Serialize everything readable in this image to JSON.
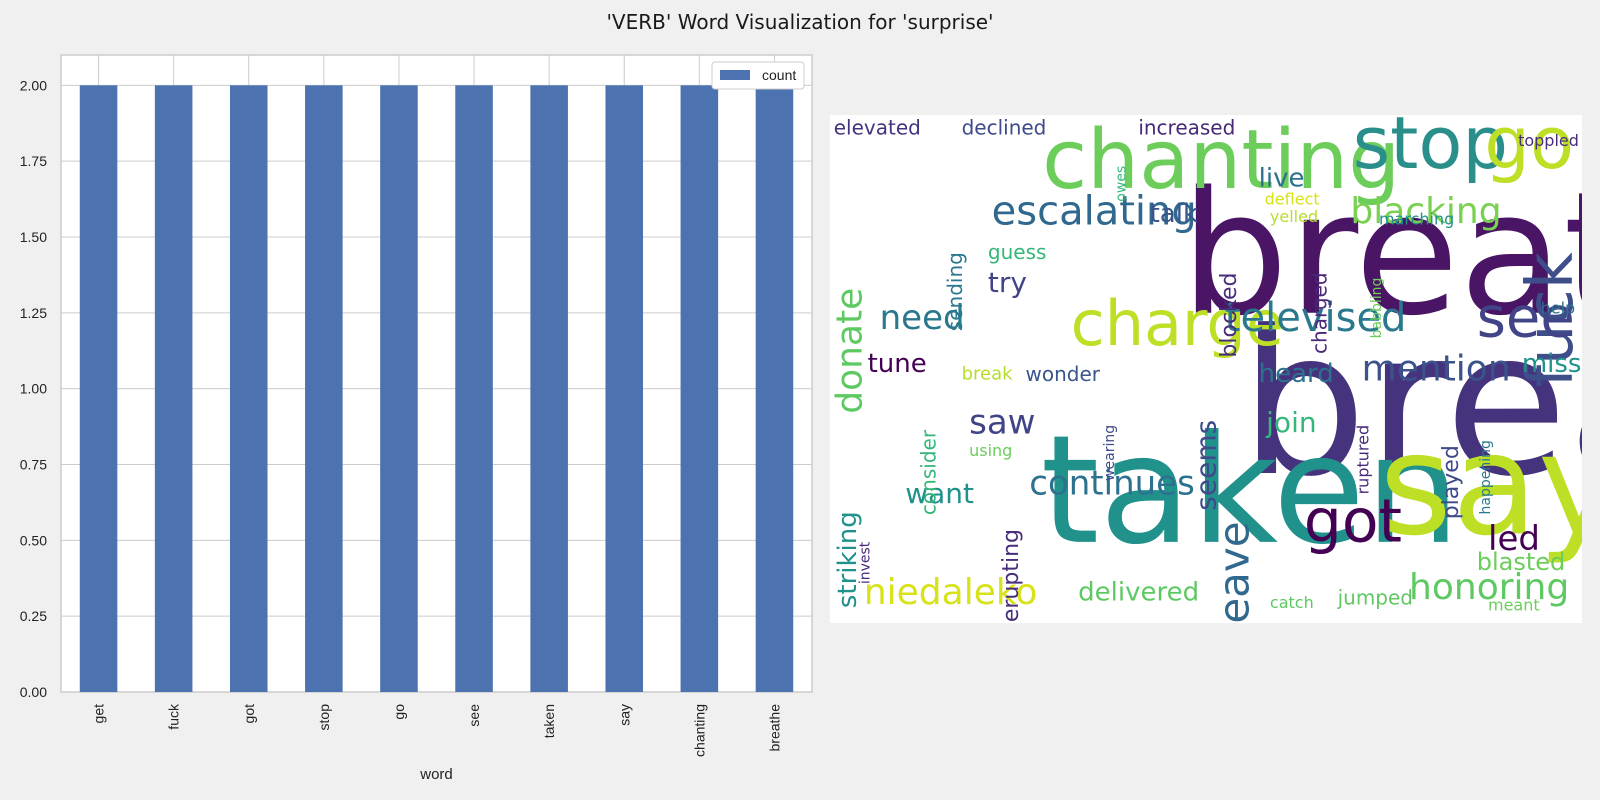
{
  "figure": {
    "title": "'VERB' Word Visualization for 'surprise'"
  },
  "chart_data": [
    {
      "type": "bar",
      "categories": [
        "get",
        "fuck",
        "got",
        "stop",
        "go",
        "see",
        "taken",
        "say",
        "chanting",
        "breathe"
      ],
      "series": [
        {
          "name": "count",
          "values": [
            2,
            2,
            2,
            2,
            2,
            2,
            2,
            2,
            2,
            2
          ]
        }
      ],
      "xlabel": "word",
      "ylabel": "",
      "ylim": [
        0,
        2.1
      ],
      "yticks": [
        "0.00",
        "0.25",
        "0.50",
        "0.75",
        "1.00",
        "1.25",
        "1.50",
        "1.75",
        "2.00"
      ],
      "grid": true,
      "legend_position": "top-right",
      "bar_color": "#4c72b0"
    },
    {
      "type": "wordcloud",
      "words": [
        {
          "text": "breathe",
          "size": 170,
          "x": 0.466,
          "y": 0.275,
          "color": "#4a1565",
          "rotate": false
        },
        {
          "text": "breaking",
          "size": 200,
          "x": 0.545,
          "y": 0.57,
          "color": "#46337e",
          "rotate": false
        },
        {
          "text": "taken",
          "size": 150,
          "x": 0.28,
          "y": 0.74,
          "color": "#21918c",
          "rotate": false
        },
        {
          "text": "say",
          "size": 140,
          "x": 0.73,
          "y": 0.73,
          "color": "#bddf26",
          "rotate": false
        },
        {
          "text": "chanting",
          "size": 82,
          "x": 0.282,
          "y": 0.09,
          "color": "#6ccd5a",
          "rotate": false
        },
        {
          "text": "stop",
          "size": 72,
          "x": 0.695,
          "y": 0.055,
          "color": "#2a8f8b",
          "rotate": false
        },
        {
          "text": "go",
          "size": 72,
          "x": 0.87,
          "y": 0.055,
          "color": "#bddf26",
          "rotate": false
        },
        {
          "text": "fuck",
          "size": 64,
          "x": 0.925,
          "y": 0.27,
          "color": "#3d4e8a",
          "rotate": true
        },
        {
          "text": "charge",
          "size": 62,
          "x": 0.32,
          "y": 0.41,
          "color": "#bddf26",
          "rotate": false
        },
        {
          "text": "see",
          "size": 56,
          "x": 0.86,
          "y": 0.4,
          "color": "#414487",
          "rotate": false
        },
        {
          "text": "got",
          "size": 60,
          "x": 0.63,
          "y": 0.8,
          "color": "#440154",
          "rotate": false
        },
        {
          "text": "escalating",
          "size": 40,
          "x": 0.215,
          "y": 0.19,
          "color": "#31688e",
          "rotate": false
        },
        {
          "text": "blacking",
          "size": 36,
          "x": 0.692,
          "y": 0.19,
          "color": "#7ad151",
          "rotate": false
        },
        {
          "text": "televised",
          "size": 40,
          "x": 0.525,
          "y": 0.4,
          "color": "#2a788e",
          "rotate": false
        },
        {
          "text": "mention",
          "size": 36,
          "x": 0.707,
          "y": 0.5,
          "color": "#3b528b",
          "rotate": false
        },
        {
          "text": "need",
          "size": 34,
          "x": 0.066,
          "y": 0.4,
          "color": "#2a788e",
          "rotate": false
        },
        {
          "text": "donate",
          "size": 36,
          "x": 0.008,
          "y": 0.34,
          "color": "#5ec962",
          "rotate": true
        },
        {
          "text": "continues",
          "size": 34,
          "x": 0.265,
          "y": 0.725,
          "color": "#2c728e",
          "rotate": false
        },
        {
          "text": "niedaleko",
          "size": 36,
          "x": 0.045,
          "y": 0.94,
          "color": "#d8e219",
          "rotate": false
        },
        {
          "text": "honoring",
          "size": 36,
          "x": 0.77,
          "y": 0.93,
          "color": "#5ec962",
          "rotate": false
        },
        {
          "text": "leave",
          "size": 42,
          "x": 0.515,
          "y": 0.8,
          "color": "#31688e",
          "rotate": true
        },
        {
          "text": "delivered",
          "size": 26,
          "x": 0.33,
          "y": 0.94,
          "color": "#5ec962",
          "rotate": false
        },
        {
          "text": "saw",
          "size": 34,
          "x": 0.185,
          "y": 0.605,
          "color": "#414487",
          "rotate": false
        },
        {
          "text": "heard",
          "size": 26,
          "x": 0.57,
          "y": 0.51,
          "color": "#2c728e",
          "rotate": false
        },
        {
          "text": "seems",
          "size": 28,
          "x": 0.485,
          "y": 0.6,
          "color": "#3e4a89",
          "rotate": true
        },
        {
          "text": "join",
          "size": 28,
          "x": 0.58,
          "y": 0.605,
          "color": "#35b779",
          "rotate": false
        },
        {
          "text": "want",
          "size": 28,
          "x": 0.1,
          "y": 0.745,
          "color": "#21918c",
          "rotate": false
        },
        {
          "text": "tune",
          "size": 26,
          "x": 0.05,
          "y": 0.49,
          "color": "#440154",
          "rotate": false
        },
        {
          "text": "live",
          "size": 26,
          "x": 0.57,
          "y": 0.125,
          "color": "#2c728e",
          "rotate": false
        },
        {
          "text": "talk",
          "size": 26,
          "x": 0.425,
          "y": 0.195,
          "color": "#39568c",
          "rotate": false
        },
        {
          "text": "try",
          "size": 28,
          "x": 0.21,
          "y": 0.33,
          "color": "#414487",
          "rotate": false
        },
        {
          "text": "miss",
          "size": 26,
          "x": 0.92,
          "y": 0.49,
          "color": "#21918c",
          "rotate": false
        },
        {
          "text": "led",
          "size": 34,
          "x": 0.875,
          "y": 0.835,
          "color": "#440154",
          "rotate": false
        },
        {
          "text": "blasted",
          "size": 24,
          "x": 0.86,
          "y": 0.88,
          "color": "#6ccd5a",
          "rotate": false
        },
        {
          "text": "striking",
          "size": 26,
          "x": 0.01,
          "y": 0.78,
          "color": "#21918c",
          "rotate": true
        },
        {
          "text": "erupting",
          "size": 22,
          "x": 0.23,
          "y": 0.815,
          "color": "#472d7b",
          "rotate": true
        },
        {
          "text": "played",
          "size": 22,
          "x": 0.815,
          "y": 0.65,
          "color": "#3e4a89",
          "rotate": true
        },
        {
          "text": "blocked",
          "size": 22,
          "x": 0.52,
          "y": 0.31,
          "color": "#472d7b",
          "rotate": true
        },
        {
          "text": "charged",
          "size": 20,
          "x": 0.64,
          "y": 0.31,
          "color": "#482878",
          "rotate": true
        },
        {
          "text": "consider",
          "size": 20,
          "x": 0.12,
          "y": 0.62,
          "color": "#35b779",
          "rotate": true
        },
        {
          "text": "sending",
          "size": 20,
          "x": 0.155,
          "y": 0.27,
          "color": "#2a788e",
          "rotate": true
        },
        {
          "text": "guess",
          "size": 20,
          "x": 0.21,
          "y": 0.27,
          "color": "#35b779",
          "rotate": false
        },
        {
          "text": "elevated",
          "size": 20,
          "x": 0.005,
          "y": 0.025,
          "color": "#46337e",
          "rotate": false
        },
        {
          "text": "declined",
          "size": 20,
          "x": 0.175,
          "y": 0.025,
          "color": "#3e4a89",
          "rotate": false
        },
        {
          "text": "increased",
          "size": 20,
          "x": 0.41,
          "y": 0.025,
          "color": "#482878",
          "rotate": false
        },
        {
          "text": "toppled",
          "size": 16,
          "x": 0.915,
          "y": 0.05,
          "color": "#472d7b",
          "rotate": false
        },
        {
          "text": "owes",
          "size": 14,
          "x": 0.38,
          "y": 0.1,
          "color": "#35b779",
          "rotate": true
        },
        {
          "text": "wonder",
          "size": 20,
          "x": 0.26,
          "y": 0.51,
          "color": "#39568c",
          "rotate": false
        },
        {
          "text": "break",
          "size": 18,
          "x": 0.175,
          "y": 0.51,
          "color": "#b5de2b",
          "rotate": false
        },
        {
          "text": "using",
          "size": 16,
          "x": 0.185,
          "y": 0.66,
          "color": "#6ccd5a",
          "rotate": false
        },
        {
          "text": "wearing",
          "size": 14,
          "x": 0.365,
          "y": 0.61,
          "color": "#3e4a89",
          "rotate": true
        },
        {
          "text": "ruptured",
          "size": 16,
          "x": 0.7,
          "y": 0.61,
          "color": "#482878",
          "rotate": true
        },
        {
          "text": "happening",
          "size": 14,
          "x": 0.865,
          "y": 0.64,
          "color": "#2a788e",
          "rotate": true
        },
        {
          "text": "babbling",
          "size": 14,
          "x": 0.72,
          "y": 0.32,
          "color": "#6ccd5a",
          "rotate": true
        },
        {
          "text": "help",
          "size": 16,
          "x": 0.945,
          "y": 0.38,
          "color": "#2c728e",
          "rotate": false
        },
        {
          "text": "deflect",
          "size": 16,
          "x": 0.578,
          "y": 0.165,
          "color": "#d8e219",
          "rotate": false
        },
        {
          "text": "yelled",
          "size": 16,
          "x": 0.585,
          "y": 0.2,
          "color": "#b5de2b",
          "rotate": false
        },
        {
          "text": "marching",
          "size": 16,
          "x": 0.73,
          "y": 0.205,
          "color": "#21918c",
          "rotate": false
        },
        {
          "text": "invest",
          "size": 14,
          "x": 0.04,
          "y": 0.84,
          "color": "#482878",
          "rotate": true
        },
        {
          "text": "catch",
          "size": 16,
          "x": 0.585,
          "y": 0.96,
          "color": "#5ec962",
          "rotate": false
        },
        {
          "text": "jumped",
          "size": 20,
          "x": 0.675,
          "y": 0.95,
          "color": "#5ec962",
          "rotate": false
        },
        {
          "text": "meant",
          "size": 16,
          "x": 0.875,
          "y": 0.965,
          "color": "#6ccd5a",
          "rotate": false
        }
      ],
      "background": "#ffffff"
    }
  ]
}
